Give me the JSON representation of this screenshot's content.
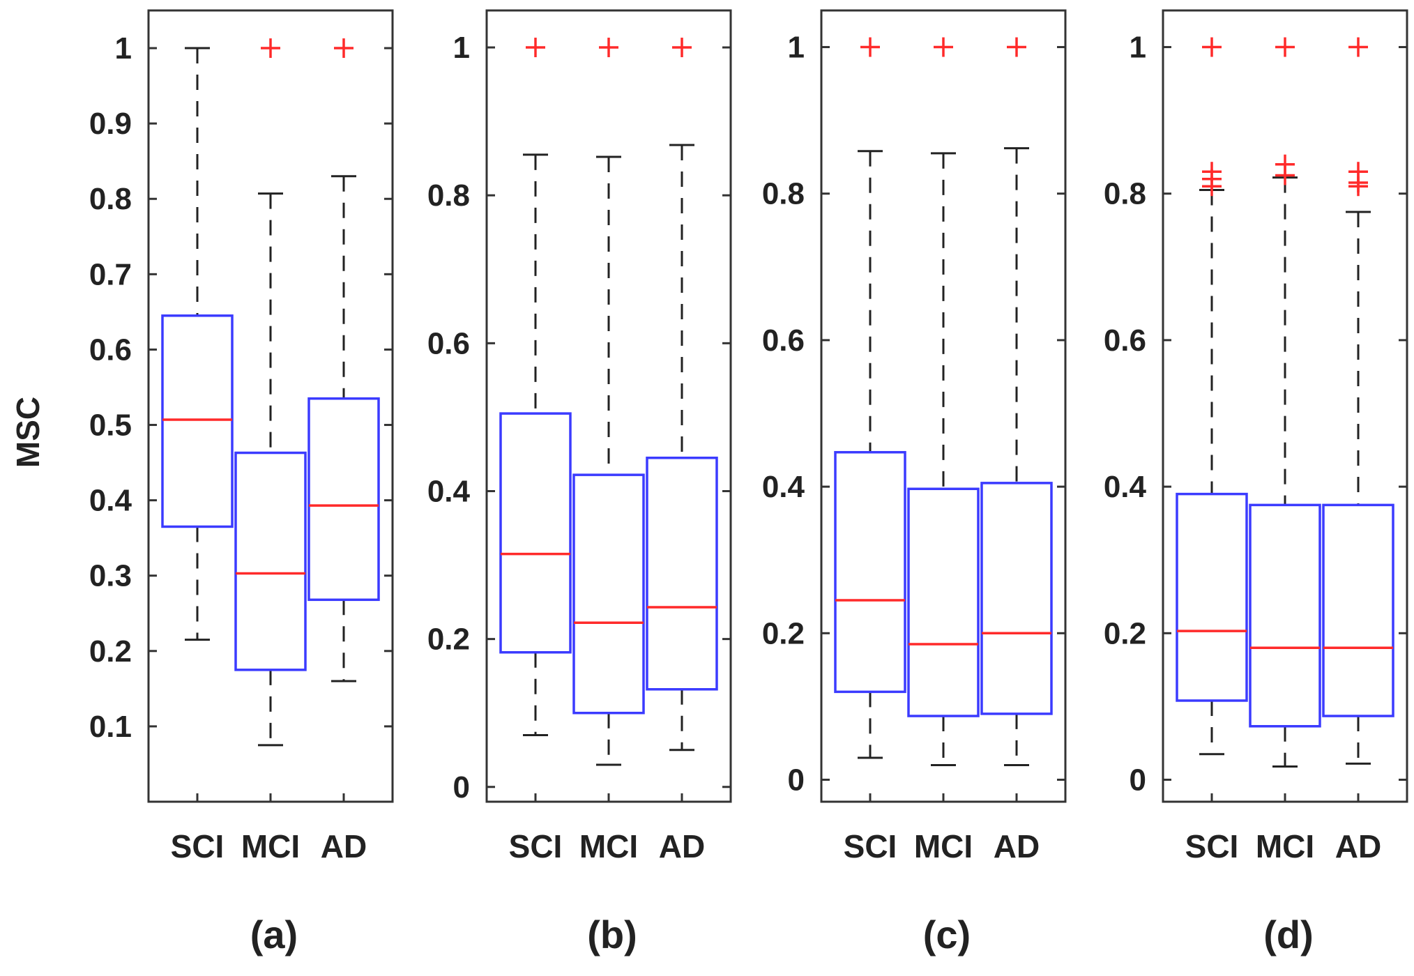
{
  "chart_data": {
    "type": "boxplot",
    "ylabel": "MSC",
    "categories": [
      "SCI",
      "MCI",
      "AD"
    ],
    "colors": {
      "box": "#3b3bff",
      "median": "#ff2a2a",
      "outlier": "#ff2a2a",
      "whisker": "#222222",
      "axes": "#333333"
    },
    "panels": [
      {
        "caption": "(a)",
        "ylim": [
          0.0,
          1.05
        ],
        "yticks": [
          0.1,
          0.2,
          0.3,
          0.4,
          0.5,
          0.6,
          0.7,
          0.8,
          0.9,
          1
        ],
        "ytick_labels": [
          "0.1",
          "0.2",
          "0.3",
          "0.4",
          "0.5",
          "0.6",
          "0.7",
          "0.8",
          "0.9",
          "1"
        ],
        "boxes": [
          {
            "name": "SCI",
            "min": 0.215,
            "q1": 0.365,
            "median": 0.507,
            "q3": 0.645,
            "max": 1.0,
            "outliers": []
          },
          {
            "name": "MCI",
            "min": 0.075,
            "q1": 0.175,
            "median": 0.303,
            "q3": 0.463,
            "max": 0.807,
            "outliers": [
              1.0
            ]
          },
          {
            "name": "AD",
            "min": 0.16,
            "q1": 0.268,
            "median": 0.393,
            "q3": 0.535,
            "max": 0.83,
            "outliers": [
              1.0
            ]
          }
        ]
      },
      {
        "caption": "(b)",
        "ylim": [
          -0.02,
          1.05
        ],
        "yticks": [
          0,
          0.2,
          0.4,
          0.6,
          0.8,
          1
        ],
        "ytick_labels": [
          "0",
          "0.2",
          "0.4",
          "0.6",
          "0.8",
          "1"
        ],
        "boxes": [
          {
            "name": "SCI",
            "min": 0.07,
            "q1": 0.182,
            "median": 0.315,
            "q3": 0.505,
            "max": 0.855,
            "outliers": [
              1.0
            ]
          },
          {
            "name": "MCI",
            "min": 0.03,
            "q1": 0.1,
            "median": 0.222,
            "q3": 0.422,
            "max": 0.852,
            "outliers": [
              1.0
            ]
          },
          {
            "name": "AD",
            "min": 0.05,
            "q1": 0.132,
            "median": 0.243,
            "q3": 0.445,
            "max": 0.868,
            "outliers": [
              1.0
            ]
          }
        ]
      },
      {
        "caption": "(c)",
        "ylim": [
          -0.03,
          1.05
        ],
        "yticks": [
          0,
          0.2,
          0.4,
          0.6,
          0.8,
          1
        ],
        "ytick_labels": [
          "0",
          "0.2",
          "0.4",
          "0.6",
          "0.8",
          "1"
        ],
        "boxes": [
          {
            "name": "SCI",
            "min": 0.03,
            "q1": 0.12,
            "median": 0.245,
            "q3": 0.447,
            "max": 0.858,
            "outliers": [
              1.0
            ]
          },
          {
            "name": "MCI",
            "min": 0.02,
            "q1": 0.087,
            "median": 0.185,
            "q3": 0.397,
            "max": 0.855,
            "outliers": [
              1.0
            ]
          },
          {
            "name": "AD",
            "min": 0.02,
            "q1": 0.09,
            "median": 0.2,
            "q3": 0.405,
            "max": 0.862,
            "outliers": [
              1.0
            ]
          }
        ]
      },
      {
        "caption": "(d)",
        "ylim": [
          -0.03,
          1.05
        ],
        "yticks": [
          0,
          0.2,
          0.4,
          0.6,
          0.8,
          1
        ],
        "ytick_labels": [
          "0",
          "0.2",
          "0.4",
          "0.6",
          "0.8",
          "1"
        ],
        "boxes": [
          {
            "name": "SCI",
            "min": 0.035,
            "q1": 0.108,
            "median": 0.203,
            "q3": 0.39,
            "max": 0.805,
            "outliers": [
              0.81,
              0.82,
              0.83,
              1.0
            ]
          },
          {
            "name": "MCI",
            "min": 0.018,
            "q1": 0.073,
            "median": 0.18,
            "q3": 0.375,
            "max": 0.822,
            "outliers": [
              0.825,
              0.84,
              1.0
            ]
          },
          {
            "name": "AD",
            "min": 0.022,
            "q1": 0.087,
            "median": 0.18,
            "q3": 0.375,
            "max": 0.775,
            "outliers": [
              0.81,
              0.815,
              0.83,
              1.0
            ]
          }
        ]
      }
    ]
  }
}
